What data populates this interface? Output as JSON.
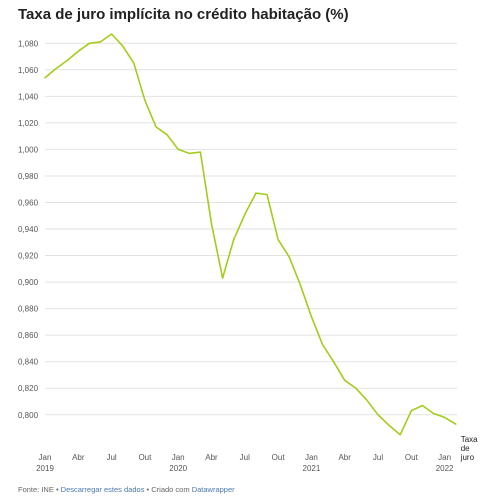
{
  "chart_data": {
    "type": "line",
    "title": "Taxa de juro implícita no crédito habitação (%)",
    "ylim": [
      0.7825,
      1.09
    ],
    "y_ticks": [
      0.8,
      0.82,
      0.84,
      0.86,
      0.88,
      0.9,
      0.92,
      0.94,
      0.96,
      0.98,
      1.0,
      1.02,
      1.04,
      1.06,
      1.08
    ],
    "y_tick_labels": [
      "0,800",
      "0,820",
      "0,840",
      "0,860",
      "0,880",
      "0,900",
      "0,920",
      "0,940",
      "0,960",
      "0,980",
      "1,000",
      "1,020",
      "1,040",
      "1,060",
      "1,080"
    ],
    "x_ticks": [
      {
        "month": "2019-01",
        "label": "Jan",
        "year": "2019"
      },
      {
        "month": "2019-04",
        "label": "Abr",
        "year": ""
      },
      {
        "month": "2019-07",
        "label": "Jul",
        "year": ""
      },
      {
        "month": "2019-10",
        "label": "Out",
        "year": ""
      },
      {
        "month": "2020-01",
        "label": "Jan",
        "year": "2020"
      },
      {
        "month": "2020-04",
        "label": "Abr",
        "year": ""
      },
      {
        "month": "2020-07",
        "label": "Jul",
        "year": ""
      },
      {
        "month": "2020-10",
        "label": "Out",
        "year": ""
      },
      {
        "month": "2021-01",
        "label": "Jan",
        "year": "2021"
      },
      {
        "month": "2021-04",
        "label": "Abr",
        "year": ""
      },
      {
        "month": "2021-07",
        "label": "Jul",
        "year": ""
      },
      {
        "month": "2021-10",
        "label": "Out",
        "year": ""
      },
      {
        "month": "2022-01",
        "label": "Jan",
        "year": "2022"
      }
    ],
    "series": [
      {
        "name": "Taxa de juro",
        "color": "#a4cc1c",
        "x": [
          "2019-01",
          "2019-02",
          "2019-03",
          "2019-04",
          "2019-05",
          "2019-06",
          "2019-07",
          "2019-08",
          "2019-09",
          "2019-10",
          "2019-11",
          "2019-12",
          "2020-01",
          "2020-02",
          "2020-03",
          "2020-04",
          "2020-05",
          "2020-06",
          "2020-07",
          "2020-08",
          "2020-09",
          "2020-10",
          "2020-11",
          "2020-12",
          "2021-01",
          "2021-02",
          "2021-03",
          "2021-04",
          "2021-05",
          "2021-06",
          "2021-07",
          "2021-08",
          "2021-09",
          "2021-10",
          "2021-11",
          "2021-12",
          "2022-01",
          "2022-02"
        ],
        "values": [
          1.054,
          1.061,
          1.067,
          1.074,
          1.08,
          1.081,
          1.087,
          1.078,
          1.065,
          1.037,
          1.017,
          1.011,
          1.0,
          0.997,
          0.998,
          0.944,
          0.903,
          0.932,
          0.951,
          0.967,
          0.966,
          0.932,
          0.919,
          0.898,
          0.874,
          0.853,
          0.84,
          0.826,
          0.82,
          0.811,
          0.8,
          0.792,
          0.785,
          0.803,
          0.807,
          0.801,
          0.798,
          0.793
        ]
      }
    ],
    "grid": "horizontal"
  },
  "footer": {
    "source": "Fonte: INE",
    "sep1": " • ",
    "download": "Descarregar estes dados",
    "sep2": " • Criado com ",
    "tool": "Datawrapper"
  }
}
